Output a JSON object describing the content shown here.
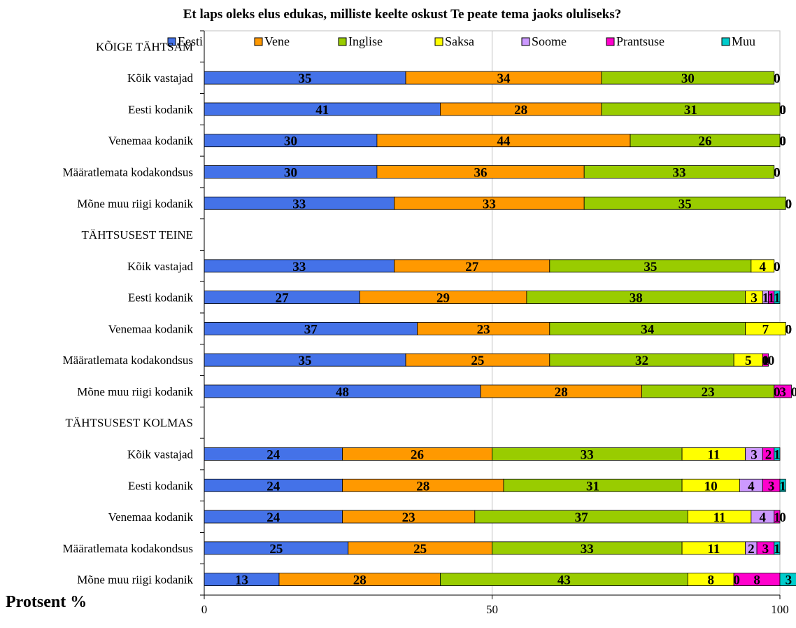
{
  "chart_data": {
    "type": "bar",
    "orientation": "horizontal",
    "stacked": true,
    "title": "Et laps oleks elus edukas, milliste keelte oskust Te peate tema jaoks oluliseks?",
    "xlabel": "Protsent %",
    "xlim": [
      0,
      100
    ],
    "xticks": [
      "0",
      "50",
      "100"
    ],
    "grid": true,
    "legend_position": "top",
    "colors": [
      "#4472e8",
      "#ff9900",
      "#99cc00",
      "#ffff00",
      "#cc99ff",
      "#ff00cc",
      "#00cccc"
    ],
    "series_names": [
      "Eesti",
      "Vene",
      "Inglise",
      "Saksa",
      "Soome",
      "Prantsuse",
      "Muu"
    ],
    "rows": [
      {
        "label": "KÕIGE TÄHTSAM",
        "header": true,
        "values": null
      },
      {
        "label": "Kõik vastajad",
        "header": false,
        "values": [
          35,
          34,
          30,
          0,
          0,
          0,
          0
        ]
      },
      {
        "label": "Eesti kodanik",
        "header": false,
        "values": [
          41,
          28,
          31,
          0,
          0,
          0,
          0
        ]
      },
      {
        "label": "Venemaa kodanik",
        "header": false,
        "values": [
          30,
          44,
          26,
          0,
          0,
          0,
          0
        ]
      },
      {
        "label": "Määratlemata kodakondsus",
        "header": false,
        "values": [
          30,
          36,
          33,
          0,
          0,
          0,
          0
        ]
      },
      {
        "label": "Mõne muu riigi kodanik",
        "header": false,
        "values": [
          33,
          33,
          35,
          0,
          0,
          0,
          0
        ]
      },
      {
        "label": "TÄHTSUSEST TEINE",
        "header": true,
        "values": null
      },
      {
        "label": "Kõik vastajad",
        "header": false,
        "values": [
          33,
          27,
          35,
          4,
          0,
          0,
          0
        ]
      },
      {
        "label": "Eesti kodanik",
        "header": false,
        "values": [
          27,
          29,
          38,
          3,
          1,
          1,
          1
        ]
      },
      {
        "label": "Venemaa kodanik",
        "header": false,
        "values": [
          37,
          23,
          34,
          7,
          0,
          0,
          0
        ]
      },
      {
        "label": "Määratlemata kodakondsus",
        "header": false,
        "values": [
          35,
          25,
          32,
          5,
          0,
          1,
          0
        ]
      },
      {
        "label": "Mõne muu riigi kodanik",
        "header": false,
        "values": [
          48,
          28,
          23,
          0,
          0,
          3,
          0
        ]
      },
      {
        "label": "TÄHTSUSEST KOLMAS",
        "header": true,
        "values": null
      },
      {
        "label": "Kõik vastajad",
        "header": false,
        "values": [
          24,
          26,
          33,
          11,
          3,
          2,
          1
        ]
      },
      {
        "label": "Eesti kodanik",
        "header": false,
        "values": [
          24,
          28,
          31,
          10,
          4,
          3,
          1
        ]
      },
      {
        "label": "Venemaa kodanik",
        "header": false,
        "values": [
          24,
          23,
          37,
          11,
          4,
          1,
          0
        ]
      },
      {
        "label": "Määratlemata kodakondsus",
        "header": false,
        "values": [
          25,
          25,
          33,
          11,
          2,
          3,
          1
        ]
      },
      {
        "label": "Mõne muu riigi kodanik",
        "header": false,
        "values": [
          13,
          28,
          43,
          8,
          0,
          8,
          3
        ]
      }
    ]
  }
}
